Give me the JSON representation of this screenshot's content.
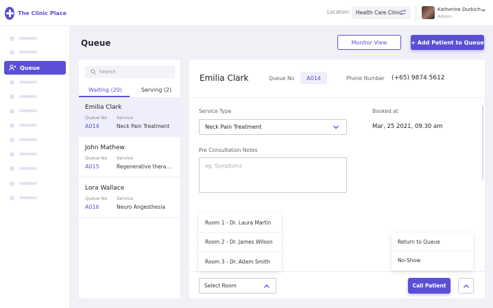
{
  "app": {
    "name": "The Clinic Place",
    "brand_color": "#5b4fd6"
  },
  "header": {
    "location_label": "Location:",
    "location_value": "Health Care Clinic",
    "user_name": "Katherine Durkich",
    "user_role": "Admin"
  },
  "sidebar": {
    "active_item": "Queue",
    "placeholder_items": 12
  },
  "page": {
    "title": "Queue",
    "monitor_button": "Monitor View",
    "add_button": "+ Add Patient to Queue"
  },
  "queue": {
    "search_placeholder": "Search",
    "tabs": [
      "Waiting (20)",
      "Serving (2)"
    ],
    "queue_no_label": "Queue No",
    "service_label": "Service",
    "patients": [
      {
        "name": "Emilia Clark",
        "queue_no": "A014",
        "service": "Neck Pain Treatment",
        "selected": true
      },
      {
        "name": "John Mathew",
        "queue_no": "A015",
        "service": "Regenerative thera...",
        "selected": false
      },
      {
        "name": "Lora Wallace",
        "queue_no": "A016",
        "service": "Neuro Angesthesia",
        "selected": false
      }
    ]
  },
  "details": {
    "name": "Emilia Clark",
    "queue_no_label": "Queue No",
    "queue_no": "A014",
    "phone_label": "Phone Number",
    "phone": "(+65) 9874 5612",
    "service_type_label": "Service Type",
    "service_type": "Neck Pain Treatment",
    "booked_label": "Booked at",
    "booked_at": "Mar, 25 2021, 09.30 am",
    "notes_label": "Pre Consultation Notes",
    "notes_placeholder": "eg. Symptoms",
    "rooms": [
      "Room 1 - Dr. Laura Martin",
      "Room 2 - Dr. James Wilson",
      "Room 3 - Dr. Adam Smith"
    ],
    "select_room_label": "Select Room",
    "call_button": "Call Patient",
    "actions": [
      "Return to Queue",
      "No-Show"
    ]
  }
}
